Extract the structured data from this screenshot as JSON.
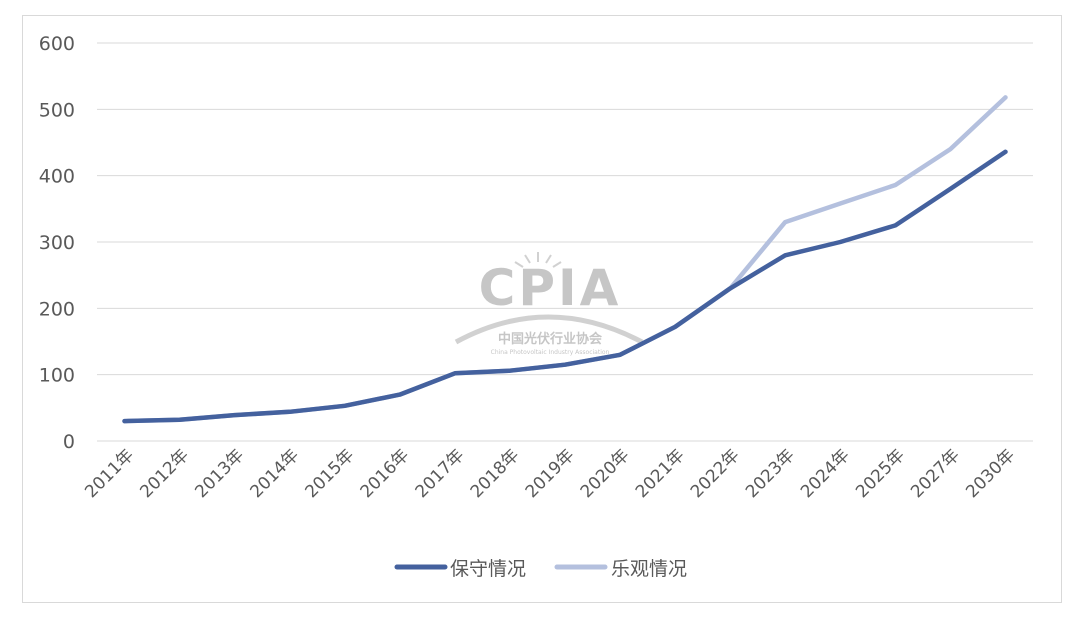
{
  "chart_data": {
    "type": "line",
    "title": "",
    "xlabel": "",
    "ylabel": "",
    "categories": [
      "2011年",
      "2012年",
      "2013年",
      "2014年",
      "2015年",
      "2016年",
      "2017年",
      "2018年",
      "2019年",
      "2020年",
      "2021年",
      "2022年",
      "2023年",
      "2024年",
      "2025年",
      "2027年",
      "2030年"
    ],
    "ylim": [
      0,
      600
    ],
    "yticks": [
      0,
      100,
      200,
      300,
      400,
      500,
      600
    ],
    "grid": true,
    "legend_position": "bottom",
    "series": [
      {
        "name": "保守情况",
        "color": "#44619e",
        "values": [
          30,
          32,
          39,
          44,
          53,
          70,
          102,
          106,
          115,
          130,
          172,
          230,
          280,
          300,
          325,
          380,
          436
        ]
      },
      {
        "name": "乐观情况",
        "color": "#b4c0de",
        "values": [
          30,
          32,
          39,
          44,
          53,
          70,
          102,
          106,
          115,
          130,
          172,
          230,
          330,
          358,
          386,
          440,
          518
        ]
      }
    ]
  },
  "watermark": {
    "logo_text": "CPIA",
    "org_name_cn": "中国光伏行业协会",
    "org_name_en": "China Photovoltaic Industry Association"
  }
}
